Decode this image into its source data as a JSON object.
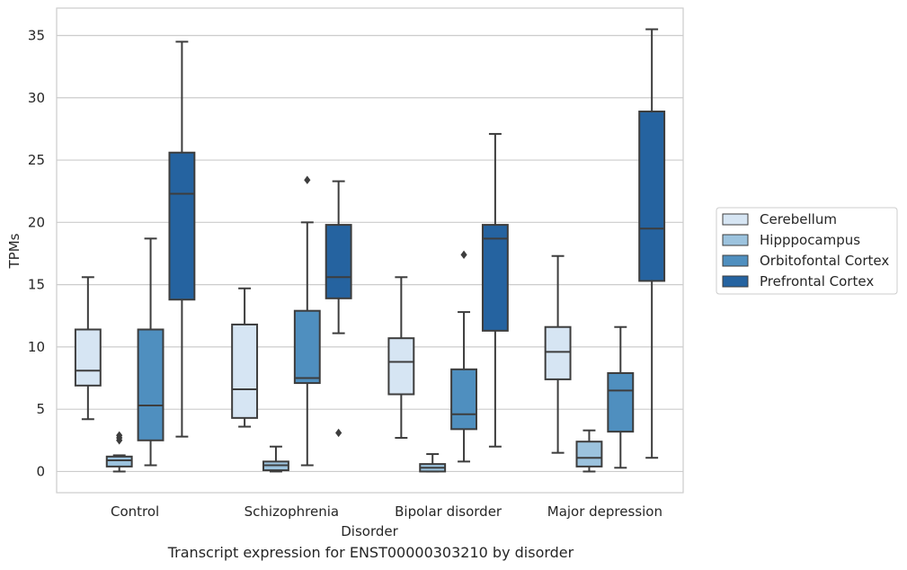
{
  "caption": "Transcript expression for ENST00000303210 by disorder",
  "chart_data": {
    "type": "box",
    "xlabel": "Disorder",
    "ylabel": "TPMs",
    "categories": [
      "Control",
      "Schizophrenia",
      "Bipolar disorder",
      "Major depression"
    ],
    "ylim": [
      -1.7,
      37.2
    ],
    "yticks": [
      0,
      5,
      10,
      15,
      20,
      25,
      30,
      35
    ],
    "grid": "horizontal",
    "legend_position": "right",
    "series": [
      {
        "name": "Cerebellum",
        "color": "#d6e5f3",
        "boxes": [
          {
            "whisker_low": 4.2,
            "q1": 6.9,
            "median": 8.1,
            "q3": 11.4,
            "whisker_high": 15.6,
            "outliers": []
          },
          {
            "whisker_low": 3.6,
            "q1": 4.3,
            "median": 6.6,
            "q3": 11.8,
            "whisker_high": 14.7,
            "outliers": []
          },
          {
            "whisker_low": 2.7,
            "q1": 6.2,
            "median": 8.8,
            "q3": 10.7,
            "whisker_high": 15.6,
            "outliers": []
          },
          {
            "whisker_low": 1.5,
            "q1": 7.4,
            "median": 9.6,
            "q3": 11.6,
            "whisker_high": 17.3,
            "outliers": []
          }
        ]
      },
      {
        "name": "Hipppocampus",
        "color": "#9cc3de",
        "boxes": [
          {
            "whisker_low": 0.0,
            "q1": 0.4,
            "median": 0.9,
            "q3": 1.2,
            "whisker_high": 1.3,
            "outliers": [
              2.5,
              2.7,
              2.9
            ]
          },
          {
            "whisker_low": 0.0,
            "q1": 0.1,
            "median": 0.5,
            "q3": 0.8,
            "whisker_high": 2.0,
            "outliers": []
          },
          {
            "whisker_low": 0.0,
            "q1": 0.0,
            "median": 0.3,
            "q3": 0.6,
            "whisker_high": 1.4,
            "outliers": []
          },
          {
            "whisker_low": 0.0,
            "q1": 0.4,
            "median": 1.1,
            "q3": 2.4,
            "whisker_high": 3.3,
            "outliers": []
          }
        ]
      },
      {
        "name": "Orbitofontal Cortex",
        "color": "#4f8fbf",
        "boxes": [
          {
            "whisker_low": 0.5,
            "q1": 2.5,
            "median": 5.3,
            "q3": 11.4,
            "whisker_high": 18.7,
            "outliers": []
          },
          {
            "whisker_low": 0.5,
            "q1": 7.1,
            "median": 7.5,
            "q3": 12.9,
            "whisker_high": 20.0,
            "outliers": [
              23.4
            ]
          },
          {
            "whisker_low": 0.8,
            "q1": 3.4,
            "median": 4.6,
            "q3": 8.2,
            "whisker_high": 12.8,
            "outliers": [
              17.4
            ]
          },
          {
            "whisker_low": 0.3,
            "q1": 3.2,
            "median": 6.5,
            "q3": 7.9,
            "whisker_high": 11.6,
            "outliers": []
          }
        ]
      },
      {
        "name": "Prefrontal Cortex",
        "color": "#2563a0",
        "boxes": [
          {
            "whisker_low": 2.8,
            "q1": 13.8,
            "median": 22.3,
            "q3": 25.6,
            "whisker_high": 34.5,
            "outliers": []
          },
          {
            "whisker_low": 11.1,
            "q1": 13.9,
            "median": 15.6,
            "q3": 19.8,
            "whisker_high": 23.3,
            "outliers": [
              3.1
            ]
          },
          {
            "whisker_low": 2.0,
            "q1": 11.3,
            "median": 18.7,
            "q3": 19.8,
            "whisker_high": 27.1,
            "outliers": []
          },
          {
            "whisker_low": 1.1,
            "q1": 15.3,
            "median": 19.5,
            "q3": 28.9,
            "whisker_high": 35.5,
            "outliers": []
          }
        ]
      }
    ]
  }
}
